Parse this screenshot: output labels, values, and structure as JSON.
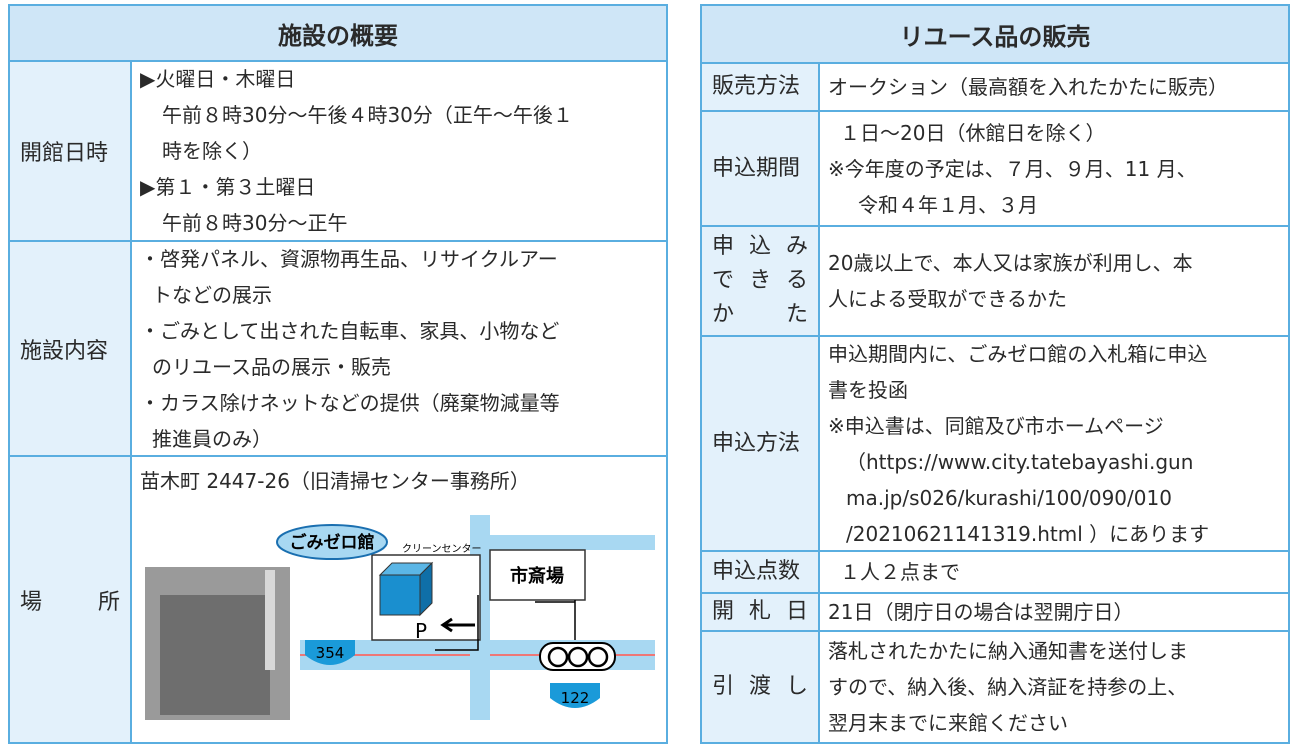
{
  "left": {
    "title": "施設の概要",
    "rows": [
      {
        "label": "開館日時",
        "lines": [
          "▶火曜日・木曜日",
          "午前８時30分～午後４時30分（正午～午後１",
          "時を除く）",
          "▶第１・第３土曜日",
          "午前８時30分～正午"
        ]
      },
      {
        "label": "施設内容",
        "lines": [
          "・啓発パネル、資源物再生品、リサイクルアー",
          "トなどの展示",
          "・ごみとして出された自転車、家具、小物など",
          "のリユース品の展示・販売",
          "・カラス除けネットなどの提供（廃棄物減量等",
          "推進員のみ）"
        ]
      },
      {
        "label": "場所",
        "lines": [
          "苗木町 2447-26（旧清掃センター事務所）"
        ]
      }
    ],
    "map": {
      "facility": "ごみゼロ館",
      "clean_center": "クリーンセンター",
      "crematorium": "市斎場",
      "parking": "P",
      "route_a": "354",
      "route_b": "122"
    }
  },
  "right": {
    "title": "リユース品の販売",
    "rows": [
      {
        "label": [
          "販売方法"
        ],
        "lines": [
          "オークション（最高額を入れたかたに販売）"
        ]
      },
      {
        "label": [
          "申込期間"
        ],
        "lines": [
          "１日～20日（休館日を除く）",
          "※今年度の予定は、７月、９月、11 月、",
          "令和４年１月、３月"
        ]
      },
      {
        "label": [
          "申込み",
          "できる",
          "かた"
        ],
        "lines": [
          "20歳以上で、本人又は家族が利用し、本",
          "人による受取ができるかた"
        ]
      },
      {
        "label": [
          "申込方法"
        ],
        "lines": [
          "申込期間内に、ごみゼロ館の入札箱に申込",
          "書を投函",
          "※申込書は、同館及び市ホームページ",
          "（https://www.city.tatebayashi.gun",
          "ma.jp/s026/kurashi/100/090/010",
          "/20210621141319.html ）にあります"
        ]
      },
      {
        "label": [
          "申込点数"
        ],
        "lines": [
          "１人２点まで"
        ]
      },
      {
        "label": [
          "開札日"
        ],
        "lines": [
          "21日（閉庁日の場合は翌開庁日）"
        ]
      },
      {
        "label": [
          "引渡し"
        ],
        "lines": [
          "落札されたかたに納入通知書を送付しま",
          "すので、納入後、納入済証を持参の上、",
          "翌月末までに来館ください"
        ]
      }
    ]
  }
}
